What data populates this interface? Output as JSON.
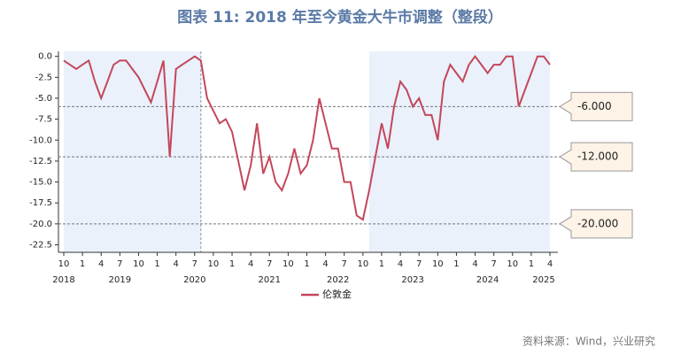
{
  "chart_data": {
    "type": "line",
    "title": "图表 11: 2018 年至今黄金大牛市调整（整段）",
    "source": "资料来源：Wind，兴业研究",
    "categories": [
      "2018-10",
      "2018-11",
      "2018-12",
      "2019-01",
      "2019-02",
      "2019-03",
      "2019-04",
      "2019-05",
      "2019-06",
      "2019-07",
      "2019-08",
      "2019-09",
      "2019-10",
      "2019-11",
      "2019-12",
      "2020-01",
      "2020-02",
      "2020-03",
      "2020-04",
      "2020-05",
      "2020-06",
      "2020-07",
      "2020-08",
      "2020-09",
      "2020-10",
      "2020-11",
      "2020-12",
      "2021-01",
      "2021-02",
      "2021-03",
      "2021-04",
      "2021-05",
      "2021-06",
      "2021-07",
      "2021-08",
      "2021-09",
      "2021-10",
      "2021-11",
      "2021-12",
      "2022-01",
      "2022-02",
      "2022-03",
      "2022-04",
      "2022-05",
      "2022-06",
      "2022-07",
      "2022-08",
      "2022-09",
      "2022-10",
      "2022-11",
      "2022-12",
      "2023-01",
      "2023-02",
      "2023-03",
      "2023-04",
      "2023-05",
      "2023-06",
      "2023-07",
      "2023-08",
      "2023-09",
      "2023-10",
      "2023-11",
      "2023-12",
      "2024-01",
      "2024-02",
      "2024-03",
      "2024-04",
      "2024-05",
      "2024-06",
      "2024-07",
      "2024-08",
      "2024-09",
      "2024-10",
      "2024-11",
      "2024-12",
      "2025-01",
      "2025-02",
      "2025-03",
      "2025-04"
    ],
    "series": [
      {
        "name": "伦敦金",
        "color": "#c4475a",
        "values": [
          -0.5,
          -1,
          -1.5,
          -1,
          -0.5,
          -3,
          -5,
          -3,
          -1,
          -0.5,
          -0.5,
          -1.5,
          -2.5,
          -4,
          -5.5,
          -3,
          -0.5,
          -12,
          -1.5,
          -1,
          -0.5,
          0,
          -0.5,
          -5,
          -6.5,
          -8,
          -7.5,
          -9,
          -12.5,
          -16,
          -13,
          -8,
          -14,
          -12,
          -15,
          -16,
          -14,
          -11,
          -14,
          -13,
          -10,
          -5,
          -8,
          -11,
          -11,
          -15,
          -15,
          -19,
          -19.5,
          -16,
          -12,
          -8,
          -11,
          -6,
          -3,
          -4,
          -6,
          -5,
          -7,
          -7,
          -10,
          -3,
          -1,
          -2,
          -3,
          -1,
          0,
          -1,
          -2,
          -1,
          -1,
          0,
          0,
          -6,
          -4,
          -2,
          0,
          0,
          -1
        ]
      }
    ],
    "ylim": [
      -23.4,
      0.6
    ],
    "yticks": [
      {
        "value": 0,
        "label": "0.0"
      },
      {
        "value": -2.5,
        "label": "-2.5"
      },
      {
        "value": -5,
        "label": "-5.0"
      },
      {
        "value": -7.5,
        "label": "-7.5"
      },
      {
        "value": -10,
        "label": "-10.0"
      },
      {
        "value": -12.5,
        "label": "-12.5"
      },
      {
        "value": -15,
        "label": "-15.0"
      },
      {
        "value": -17.5,
        "label": "-17.5"
      },
      {
        "value": -20,
        "label": "-20.0"
      },
      {
        "value": -22.5,
        "label": "-22.5"
      }
    ],
    "xticks": [
      {
        "value": "2018-10",
        "label": "10"
      },
      {
        "value": "2019-01",
        "label": "1"
      },
      {
        "value": "2019-04",
        "label": "4"
      },
      {
        "value": "2019-07",
        "label": "7"
      },
      {
        "value": "2019-10",
        "label": "10"
      },
      {
        "value": "2020-01",
        "label": "1"
      },
      {
        "value": "2020-04",
        "label": "4"
      },
      {
        "value": "2020-07",
        "label": "7"
      },
      {
        "value": "2020-10",
        "label": "10"
      },
      {
        "value": "2021-01",
        "label": "1"
      },
      {
        "value": "2021-04",
        "label": "4"
      },
      {
        "value": "2021-07",
        "label": "7"
      },
      {
        "value": "2021-10",
        "label": "10"
      },
      {
        "value": "2022-01",
        "label": "1"
      },
      {
        "value": "2022-04",
        "label": "4"
      },
      {
        "value": "2022-07",
        "label": "7"
      },
      {
        "value": "2022-10",
        "label": "10"
      },
      {
        "value": "2023-01",
        "label": "1"
      },
      {
        "value": "2023-04",
        "label": "4"
      },
      {
        "value": "2023-07",
        "label": "7"
      },
      {
        "value": "2023-10",
        "label": "10"
      },
      {
        "value": "2024-01",
        "label": "1"
      },
      {
        "value": "2024-04",
        "label": "4"
      },
      {
        "value": "2024-07",
        "label": "7"
      },
      {
        "value": "2024-10",
        "label": "10"
      },
      {
        "value": "2025-01",
        "label": "1"
      },
      {
        "value": "2025-04",
        "label": "4"
      }
    ],
    "year_labels": [
      {
        "value": "2018-10",
        "label": "2018"
      },
      {
        "value": "2019-07",
        "label": "2019"
      },
      {
        "value": "2020-07",
        "label": "2020"
      },
      {
        "value": "2021-07",
        "label": "2021"
      },
      {
        "value": "2022-06",
        "label": "2022"
      },
      {
        "value": "2023-06",
        "label": "2023"
      },
      {
        "value": "2024-06",
        "label": "2024"
      },
      {
        "value": "2025-03",
        "label": "2025"
      }
    ],
    "shaded_ranges": [
      [
        "2018-10",
        "2020-08"
      ],
      [
        "2022-11",
        "2025-04"
      ]
    ],
    "vertical_lines": [
      "2020-08"
    ],
    "reference_lines": [
      {
        "value": -6,
        "label": "-6.000"
      },
      {
        "value": -12,
        "label": "-12.000"
      },
      {
        "value": -20,
        "label": "-20.000"
      }
    ]
  }
}
